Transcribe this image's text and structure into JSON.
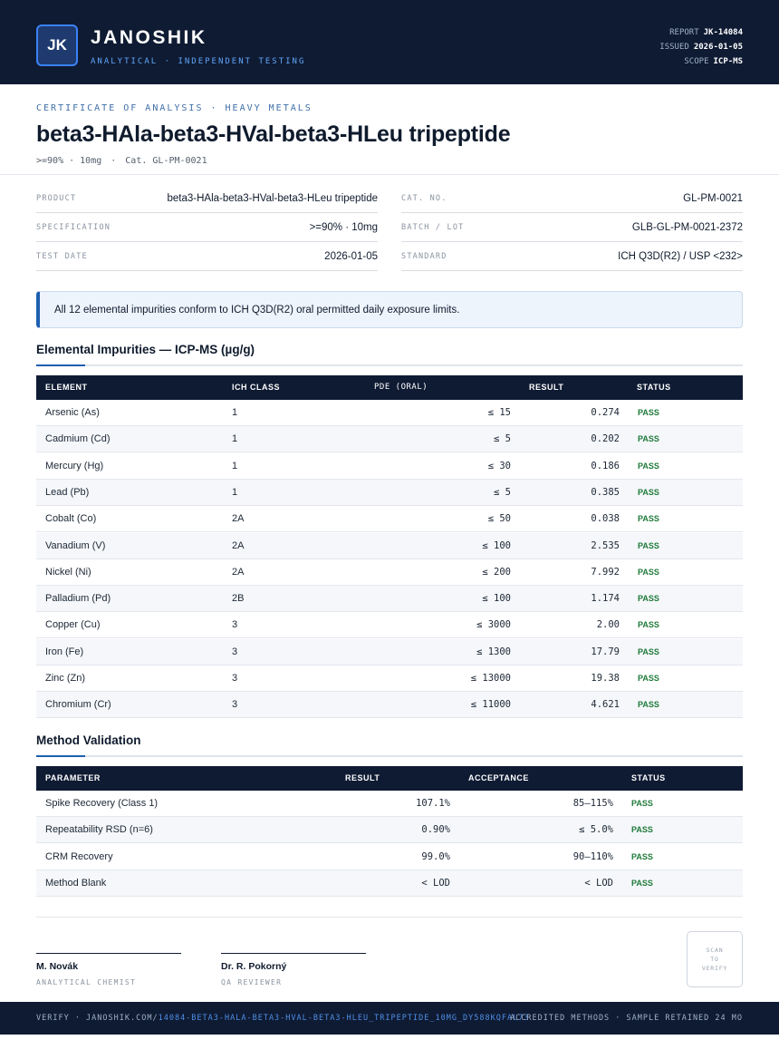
{
  "header": {
    "logo_text": "JK",
    "brand": "JANOSHIK",
    "brand_sub": "ANALYTICAL · INDEPENDENT TESTING",
    "report_label": "REPORT",
    "report_value": "JK-14084",
    "issued_label": "ISSUED",
    "issued_value": "2026-01-05",
    "scope_label": "SCOPE",
    "scope_value": "ICP-MS"
  },
  "title_block": {
    "kicker": "CERTIFICATE OF ANALYSIS · HEAVY METALS",
    "title": "beta3-HAla-beta3-HVal-beta3-HLeu tripeptide",
    "purity": ">=90% · 10mg",
    "dot": "·",
    "catalog": "Cat. GL-PM-0021"
  },
  "info": {
    "product_label": "PRODUCT",
    "product_value": "beta3-HAla-beta3-HVal-beta3-HLeu tripeptide",
    "spec_label": "SPECIFICATION",
    "spec_value": ">=90% · 10mg",
    "test_date_label": "TEST DATE",
    "test_date_value": "2026-01-05",
    "cat_label": "CAT. NO.",
    "cat_value": "GL-PM-0021",
    "batch_label": "BATCH / LOT",
    "batch_value": "GLB-GL-PM-0021-2372",
    "standard_label": "STANDARD",
    "standard_value": "ICH Q3D(R2) / USP <232>"
  },
  "notice": "All 12 elemental impurities conform to ICH Q3D(R2) oral permitted daily exposure limits.",
  "impurities": {
    "title": "Elemental Impurities — ICP-MS (µg/g)",
    "headers": {
      "element": "ELEMENT",
      "ich_class": "ICH CLASS",
      "pde": "PDE (ORAL)",
      "result": "RESULT",
      "status": "STATUS"
    },
    "rows": [
      {
        "element": "Arsenic (As)",
        "ich_class": "1",
        "pde": "≤ 15",
        "result": "0.274",
        "status": "PASS"
      },
      {
        "element": "Cadmium (Cd)",
        "ich_class": "1",
        "pde": "≤ 5",
        "result": "0.202",
        "status": "PASS"
      },
      {
        "element": "Mercury (Hg)",
        "ich_class": "1",
        "pde": "≤ 30",
        "result": "0.186",
        "status": "PASS"
      },
      {
        "element": "Lead (Pb)",
        "ich_class": "1",
        "pde": "≤ 5",
        "result": "0.385",
        "status": "PASS"
      },
      {
        "element": "Cobalt (Co)",
        "ich_class": "2A",
        "pde": "≤ 50",
        "result": "0.038",
        "status": "PASS"
      },
      {
        "element": "Vanadium (V)",
        "ich_class": "2A",
        "pde": "≤ 100",
        "result": "2.535",
        "status": "PASS"
      },
      {
        "element": "Nickel (Ni)",
        "ich_class": "2A",
        "pde": "≤ 200",
        "result": "7.992",
        "status": "PASS"
      },
      {
        "element": "Palladium (Pd)",
        "ich_class": "2B",
        "pde": "≤ 100",
        "result": "1.174",
        "status": "PASS"
      },
      {
        "element": "Copper (Cu)",
        "ich_class": "3",
        "pde": "≤ 3000",
        "result": "2.00",
        "status": "PASS"
      },
      {
        "element": "Iron (Fe)",
        "ich_class": "3",
        "pde": "≤ 1300",
        "result": "17.79",
        "status": "PASS"
      },
      {
        "element": "Zinc (Zn)",
        "ich_class": "3",
        "pde": "≤ 13000",
        "result": "19.38",
        "status": "PASS"
      },
      {
        "element": "Chromium (Cr)",
        "ich_class": "3",
        "pde": "≤ 11000",
        "result": "4.621",
        "status": "PASS"
      }
    ]
  },
  "validation": {
    "title": "Method Validation",
    "headers": {
      "parameter": "PARAMETER",
      "result": "RESULT",
      "acceptance": "ACCEPTANCE",
      "status": "STATUS"
    },
    "rows": [
      {
        "parameter": "Spike Recovery (Class 1)",
        "result": "107.1%",
        "acceptance": "85–115%",
        "status": "PASS"
      },
      {
        "parameter": "Repeatability RSD (n=6)",
        "result": "0.90%",
        "acceptance": "≤ 5.0%",
        "status": "PASS"
      },
      {
        "parameter": "CRM Recovery",
        "result": "99.0%",
        "acceptance": "90–110%",
        "status": "PASS"
      },
      {
        "parameter": "Method Blank",
        "result": "< LOD",
        "acceptance": "< LOD",
        "status": "PASS"
      }
    ]
  },
  "signatures": [
    {
      "name": "M. Novák",
      "role": "ANALYTICAL CHEMIST"
    },
    {
      "name": "Dr. R. Pokorný",
      "role": "QA REVIEWER"
    }
  ],
  "qr": {
    "line1": "SCAN",
    "line2": "TO",
    "line3": "VERIFY"
  },
  "footer": {
    "verify_prefix": "VERIFY · JANOSHIK.COM/",
    "verify_link": "14084-BETA3-HALA-BETA3-HVAL-BETA3-HLEU_TRIPEPTIDE_10MG_DY588KQFAL73",
    "right_text": "ACCREDITED METHODS · SAMPLE RETAINED 24 MO"
  },
  "colors": {
    "navy": "#0f1b33",
    "accent_blue": "#1d5fb0",
    "pass_green": "#1f7a3a"
  }
}
